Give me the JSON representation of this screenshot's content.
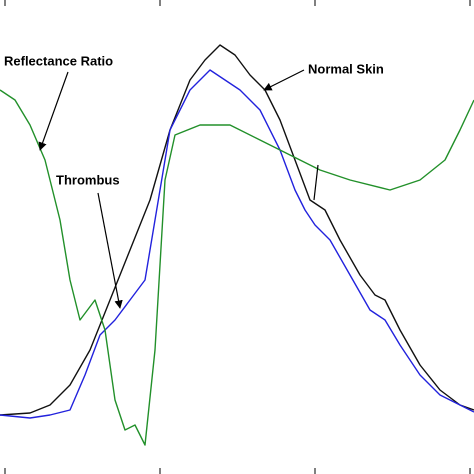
{
  "chart_data": {
    "type": "line",
    "xlim": [
      0,
      474
    ],
    "ylim": [
      0,
      474
    ],
    "xticks": [
      5,
      160,
      315,
      470
    ],
    "series": [
      {
        "name": "Normal Skin",
        "color": "#111111",
        "x": [
          0,
          30,
          50,
          70,
          90,
          110,
          130,
          150,
          170,
          190,
          205,
          220,
          235,
          250,
          265,
          280,
          295,
          310,
          325,
          340,
          360,
          375,
          385,
          400,
          420,
          440,
          460,
          474
        ],
        "values": [
          59,
          61,
          69,
          89,
          124,
          174,
          224,
          274,
          344,
          394,
          414,
          429,
          419,
          399,
          384,
          354,
          314,
          274,
          264,
          234,
          199,
          179,
          174,
          144,
          109,
          84,
          69,
          64
        ]
      },
      {
        "name": "Thrombus",
        "color": "#2222dd",
        "x": [
          0,
          30,
          50,
          70,
          85,
          100,
          115,
          130,
          145,
          160,
          170,
          190,
          210,
          225,
          240,
          260,
          280,
          295,
          305,
          315,
          330,
          350,
          370,
          385,
          400,
          420,
          440,
          460,
          474
        ],
        "values": [
          59,
          56,
          59,
          64,
          99,
          139,
          154,
          174,
          194,
          284,
          344,
          384,
          404,
          394,
          384,
          364,
          324,
          284,
          264,
          249,
          234,
          199,
          164,
          154,
          129,
          99,
          79,
          69,
          62
        ]
      },
      {
        "name": "Reflectance Ratio",
        "color": "#22902a",
        "x": [
          0,
          15,
          30,
          45,
          60,
          70,
          80,
          95,
          105,
          115,
          125,
          135,
          145,
          155,
          165,
          175,
          200,
          230,
          260,
          290,
          320,
          350,
          390,
          420,
          445,
          460,
          474
        ],
        "values": [
          384,
          374,
          349,
          314,
          254,
          194,
          154,
          174,
          144,
          74,
          44,
          49,
          29,
          124,
          294,
          339,
          349,
          349,
          334,
          319,
          304,
          294,
          284,
          294,
          314,
          344,
          374
        ]
      }
    ]
  }
}
